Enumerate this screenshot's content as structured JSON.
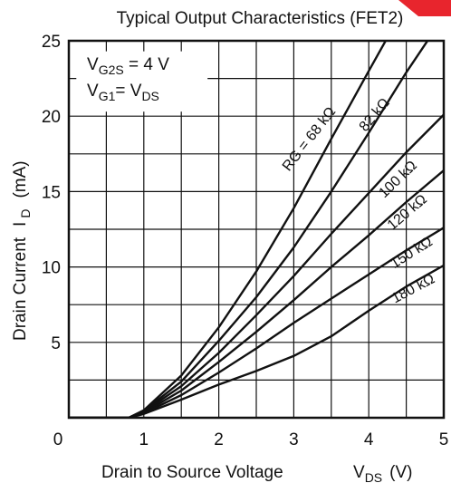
{
  "chart_data": {
    "type": "line",
    "title": "Typical Output Characteristics (FET2)",
    "xlabel": {
      "main": "Drain to Source Voltage",
      "symbol": "V",
      "subscript": "DS",
      "unit": "(V)"
    },
    "ylabel": {
      "main": "Drain Current",
      "symbol": "I",
      "subscript": "D",
      "unit": "(mA)"
    },
    "xlim": [
      0,
      5
    ],
    "ylim": [
      0,
      25
    ],
    "x_ticks": [
      0,
      1,
      2,
      3,
      4,
      5
    ],
    "y_ticks": [
      0,
      5,
      10,
      15,
      20,
      25
    ],
    "x_tick_labels": [
      "0",
      "1",
      "2",
      "3",
      "4",
      "5"
    ],
    "y_tick_labels": [
      "0",
      "5",
      "10",
      "15",
      "20",
      "25"
    ],
    "grid": true,
    "conditions": [
      {
        "sym": "V",
        "sub": "G2S",
        "rest": " = 4 V"
      },
      {
        "sym": "V",
        "sub": "G1",
        "rest": "= V",
        "sub2": "DS"
      }
    ],
    "series": [
      {
        "name": "RG = 68 kΩ",
        "label": "RG = 68 kΩ",
        "x": [
          0,
          0.8,
          1.0,
          1.5,
          2.0,
          2.5,
          3.0,
          3.5,
          4.0,
          4.45
        ],
        "y": [
          0,
          0,
          0.5,
          2.8,
          6.0,
          9.7,
          13.9,
          18.5,
          23.0,
          27.0
        ]
      },
      {
        "name": "82 kΩ",
        "label": "82 kΩ",
        "x": [
          0,
          0.8,
          1.0,
          1.5,
          2.0,
          2.5,
          3.0,
          3.5,
          4.0,
          4.5,
          5.0
        ],
        "y": [
          0,
          0,
          0.45,
          2.4,
          5.1,
          8.0,
          11.3,
          15.0,
          18.9,
          22.9,
          26.6
        ]
      },
      {
        "name": "100 kΩ",
        "label": "100 kΩ",
        "x": [
          0,
          0.8,
          1.0,
          1.5,
          2.0,
          2.5,
          3.0,
          3.5,
          4.0,
          4.5,
          5.0
        ],
        "y": [
          0,
          0,
          0.4,
          2.1,
          4.3,
          6.8,
          9.4,
          12.2,
          14.9,
          17.6,
          20.1
        ]
      },
      {
        "name": "120 kΩ",
        "label": "120 kΩ",
        "x": [
          0,
          0.8,
          1.0,
          1.5,
          2.0,
          2.5,
          3.0,
          3.5,
          4.0,
          4.5,
          5.0
        ],
        "y": [
          0,
          0,
          0.35,
          1.8,
          3.7,
          5.7,
          7.8,
          10.0,
          12.1,
          14.3,
          16.4
        ]
      },
      {
        "name": "150 kΩ",
        "label": "150 kΩ",
        "x": [
          0,
          0.8,
          1.0,
          1.5,
          2.0,
          2.5,
          3.0,
          3.5,
          4.0,
          4.5,
          5.0
        ],
        "y": [
          0,
          0,
          0.3,
          1.5,
          3.0,
          4.6,
          6.3,
          7.9,
          9.5,
          11.1,
          12.6
        ]
      },
      {
        "name": "180 kΩ",
        "label": "180 kΩ",
        "x": [
          0,
          0.8,
          1.0,
          1.5,
          2.0,
          2.5,
          3.0,
          3.5,
          4.0,
          4.5,
          5.0
        ],
        "y": [
          0,
          0,
          0.25,
          1.2,
          2.2,
          3.1,
          4.1,
          5.4,
          7.1,
          8.7,
          10.1
        ]
      }
    ]
  }
}
